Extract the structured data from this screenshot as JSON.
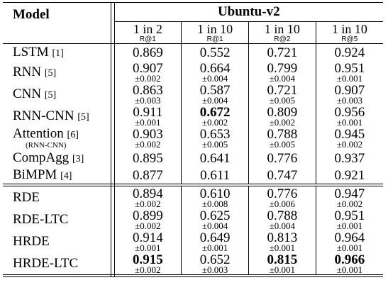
{
  "header": {
    "model": "Model",
    "dataset": "Ubuntu-v2",
    "metrics": [
      {
        "top": "1 in 2",
        "bottom": "R@1"
      },
      {
        "top": "1 in 10",
        "bottom": "R@1"
      },
      {
        "top": "1 in 10",
        "bottom": "R@2"
      },
      {
        "top": "1 in 10",
        "bottom": "R@5"
      }
    ]
  },
  "groups": [
    {
      "rows": [
        {
          "name": "LSTM",
          "cite": "[1]",
          "sub": "",
          "values": [
            {
              "v": "0.869",
              "e": ""
            },
            {
              "v": "0.552",
              "e": ""
            },
            {
              "v": "0.721",
              "e": ""
            },
            {
              "v": "0.924",
              "e": ""
            }
          ]
        },
        {
          "name": "RNN",
          "cite": "[5]",
          "sub": "",
          "values": [
            {
              "v": "0.907",
              "e": "±0.002"
            },
            {
              "v": "0.664",
              "e": "±0.004"
            },
            {
              "v": "0.799",
              "e": "±0.004"
            },
            {
              "v": "0.951",
              "e": "±0.001"
            }
          ]
        },
        {
          "name": "CNN",
          "cite": "[5]",
          "sub": "",
          "values": [
            {
              "v": "0.863",
              "e": "±0.003"
            },
            {
              "v": "0.587",
              "e": "±0.004"
            },
            {
              "v": "0.721",
              "e": "±0.005"
            },
            {
              "v": "0.907",
              "e": "±0.003"
            }
          ]
        },
        {
          "name": "RNN-CNN",
          "cite": "[5]",
          "sub": "",
          "values": [
            {
              "v": "0.911",
              "e": "±0.001"
            },
            {
              "v": "0.672",
              "e": "±0.002",
              "bold": true
            },
            {
              "v": "0.809",
              "e": "±0.002"
            },
            {
              "v": "0.956",
              "e": "±0.001"
            }
          ]
        },
        {
          "name": "Attention",
          "cite": "[6]",
          "sub": "(RNN-CNN)",
          "values": [
            {
              "v": "0.903",
              "e": "±0.002"
            },
            {
              "v": "0.653",
              "e": "±0.005"
            },
            {
              "v": "0.788",
              "e": "±0.005"
            },
            {
              "v": "0.945",
              "e": "±0.002"
            }
          ]
        },
        {
          "name": "CompAgg",
          "cite": "[3]",
          "sub": "",
          "values": [
            {
              "v": "0.895",
              "e": ""
            },
            {
              "v": "0.641",
              "e": ""
            },
            {
              "v": "0.776",
              "e": ""
            },
            {
              "v": "0.937",
              "e": ""
            }
          ]
        },
        {
          "name": "BiMPM",
          "cite": "[4]",
          "sub": "",
          "values": [
            {
              "v": "0.877",
              "e": ""
            },
            {
              "v": "0.611",
              "e": ""
            },
            {
              "v": "0.747",
              "e": ""
            },
            {
              "v": "0.921",
              "e": ""
            }
          ]
        }
      ]
    },
    {
      "rows": [
        {
          "name": "RDE",
          "cite": "",
          "sub": "",
          "values": [
            {
              "v": "0.894",
              "e": "±0.002"
            },
            {
              "v": "0.610",
              "e": "±0.008"
            },
            {
              "v": "0.776",
              "e": "±0.006"
            },
            {
              "v": "0.947",
              "e": "±0.002"
            }
          ]
        },
        {
          "name": "RDE-LTC",
          "cite": "",
          "sub": "",
          "values": [
            {
              "v": "0.899",
              "e": "±0.002"
            },
            {
              "v": "0.625",
              "e": "±0.004"
            },
            {
              "v": "0.788",
              "e": "±0.004"
            },
            {
              "v": "0.951",
              "e": "±0.001"
            }
          ]
        },
        {
          "name": "HRDE",
          "cite": "",
          "sub": "",
          "values": [
            {
              "v": "0.914",
              "e": "±0.001"
            },
            {
              "v": "0.649",
              "e": "±0.001"
            },
            {
              "v": "0.813",
              "e": "±0.001"
            },
            {
              "v": "0.964",
              "e": "±0.001"
            }
          ]
        },
        {
          "name": "HRDE-LTC",
          "cite": "",
          "sub": "",
          "values": [
            {
              "v": "0.915",
              "e": "±0.002",
              "bold": true
            },
            {
              "v": "0.652",
              "e": "±0.003"
            },
            {
              "v": "0.815",
              "e": "±0.001",
              "bold": true
            },
            {
              "v": "0.966",
              "e": "±0.001",
              "bold": true
            }
          ]
        }
      ]
    }
  ]
}
